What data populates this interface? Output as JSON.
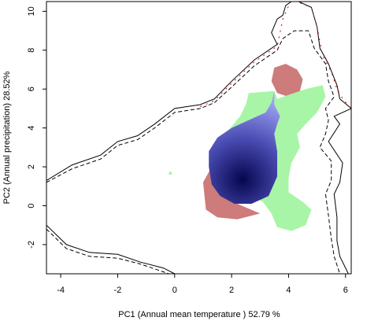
{
  "chart_data": {
    "type": "niche-overlap-density",
    "xlabel": "PC1 (Annual mean temperature ) 52.79 %",
    "ylabel": "PC2 (Annual precipitation) 28.52%",
    "xlim": [
      -4.5,
      6.2
    ],
    "ylim": [
      -3.5,
      10.5
    ],
    "x_ticks": [
      -4,
      -2,
      0,
      2,
      4,
      6
    ],
    "y_ticks": [
      -2,
      0,
      2,
      4,
      6,
      8,
      10
    ],
    "grid": false,
    "legend": "none",
    "colors": {
      "range_a": "#cd7b7b",
      "range_b": "#a8f5a8",
      "overlap_light": "#9ea2f2",
      "overlap_dark": "#06064f",
      "envelope_line": "#000000",
      "envelope_dashed": "#000000",
      "envelope_red": "#cc0000"
    },
    "series": [
      {
        "role": "range_a",
        "regions": [
          [
            [
              3.5,
              7.1
            ],
            [
              3.9,
              7.3
            ],
            [
              4.3,
              7.0
            ],
            [
              4.5,
              6.5
            ],
            [
              4.4,
              5.9
            ],
            [
              4.0,
              5.6
            ],
            [
              3.6,
              5.8
            ],
            [
              3.4,
              6.4
            ]
          ],
          [
            [
              1.6,
              3.5
            ],
            [
              1.3,
              2.0
            ],
            [
              1.0,
              1.2
            ],
            [
              1.1,
              -0.2
            ],
            [
              1.5,
              -0.6
            ],
            [
              2.2,
              -0.7
            ],
            [
              3.0,
              -0.4
            ],
            [
              2.2,
              0.1
            ],
            [
              1.8,
              1.0
            ],
            [
              1.7,
              2.2
            ]
          ]
        ]
      },
      {
        "role": "range_b",
        "regions": [
          [
            [
              2.6,
              5.8
            ],
            [
              3.5,
              5.9
            ],
            [
              3.6,
              5.5
            ],
            [
              4.6,
              6.0
            ],
            [
              5.2,
              6.2
            ],
            [
              5.3,
              5.6
            ],
            [
              5.0,
              4.8
            ],
            [
              4.6,
              4.2
            ],
            [
              4.3,
              3.7
            ],
            [
              4.4,
              3.0
            ],
            [
              4.1,
              2.2
            ],
            [
              4.0,
              1.4
            ],
            [
              4.0,
              0.7
            ],
            [
              4.5,
              0.2
            ],
            [
              4.8,
              -0.2
            ],
            [
              4.6,
              -1.0
            ],
            [
              4.1,
              -1.3
            ],
            [
              3.6,
              -1.1
            ],
            [
              3.4,
              -0.4
            ],
            [
              3.1,
              0.2
            ],
            [
              2.5,
              0.6
            ],
            [
              2.0,
              1.0
            ],
            [
              1.8,
              2.2
            ],
            [
              1.7,
              3.2
            ],
            [
              1.9,
              3.9
            ],
            [
              2.3,
              4.6
            ],
            [
              2.5,
              5.2
            ]
          ],
          [
            [
              -0.2,
              1.75
            ],
            [
              -0.1,
              1.75
            ],
            [
              -0.1,
              1.6
            ],
            [
              -0.2,
              1.6
            ]
          ]
        ]
      },
      {
        "role": "overlap",
        "center": [
          2.35,
          1.35
        ],
        "regions": [
          [
            [
              3.5,
              5.9
            ],
            [
              3.5,
              5.2
            ],
            [
              3.7,
              4.6
            ],
            [
              3.6,
              4.2
            ],
            [
              3.5,
              3.7
            ],
            [
              3.6,
              2.8
            ],
            [
              3.6,
              1.5
            ],
            [
              3.3,
              0.5
            ],
            [
              2.7,
              0.1
            ],
            [
              2.1,
              0.1
            ],
            [
              1.6,
              0.5
            ],
            [
              1.3,
              1.1
            ],
            [
              1.2,
              2.0
            ],
            [
              1.2,
              2.8
            ],
            [
              1.5,
              3.5
            ],
            [
              2.0,
              4.0
            ],
            [
              2.6,
              4.4
            ],
            [
              3.2,
              4.8
            ],
            [
              3.4,
              5.3
            ]
          ]
        ]
      },
      {
        "role": "envelope_solid",
        "points": [
          [
            -4.5,
            1.3
          ],
          [
            -3.6,
            2.1
          ],
          [
            -2.6,
            2.6
          ],
          [
            -2.0,
            3.3
          ],
          [
            -1.3,
            3.6
          ],
          [
            -0.7,
            4.2
          ],
          [
            0.0,
            5.0
          ],
          [
            0.9,
            5.2
          ],
          [
            1.4,
            5.5
          ],
          [
            2.0,
            6.4
          ],
          [
            2.8,
            7.5
          ],
          [
            3.6,
            8.3
          ],
          [
            3.4,
            8.9
          ],
          [
            3.6,
            9.6
          ],
          [
            3.8,
            9.8
          ],
          [
            3.9,
            10.3
          ],
          [
            4.2,
            10.6
          ],
          [
            4.8,
            10.2
          ],
          [
            5.0,
            9.2
          ],
          [
            5.1,
            8.1
          ],
          [
            5.4,
            7.3
          ],
          [
            5.7,
            6.2
          ],
          [
            5.8,
            5.5
          ],
          [
            6.2,
            5.0
          ],
          [
            5.6,
            4.6
          ],
          [
            5.8,
            4.2
          ],
          [
            5.4,
            3.3
          ],
          [
            5.9,
            2.2
          ],
          [
            5.8,
            1.2
          ],
          [
            5.6,
            0.6
          ],
          [
            5.7,
            -0.6
          ],
          [
            5.7,
            -1.8
          ],
          [
            5.8,
            -2.6
          ],
          [
            6.1,
            -3.5
          ]
        ]
      },
      {
        "role": "envelope_solid",
        "points": [
          [
            -4.5,
            -1.0
          ],
          [
            -3.8,
            -2.0
          ],
          [
            -3.0,
            -2.4
          ],
          [
            -2.0,
            -2.5
          ],
          [
            -1.2,
            -2.9
          ],
          [
            -0.4,
            -3.2
          ],
          [
            0.0,
            -3.5
          ]
        ]
      },
      {
        "role": "envelope_dashed",
        "points": [
          [
            -4.5,
            1.2
          ],
          [
            -3.6,
            1.9
          ],
          [
            -2.6,
            2.4
          ],
          [
            -2.0,
            3.1
          ],
          [
            -1.3,
            3.4
          ],
          [
            -0.7,
            4.0
          ],
          [
            0.0,
            4.8
          ],
          [
            0.9,
            5.0
          ],
          [
            1.4,
            5.3
          ],
          [
            2.0,
            6.1
          ],
          [
            2.8,
            7.2
          ],
          [
            3.6,
            8.0
          ],
          [
            3.8,
            8.6
          ],
          [
            4.2,
            9.0
          ],
          [
            4.7,
            9.0
          ],
          [
            4.9,
            8.1
          ],
          [
            5.3,
            7.3
          ],
          [
            5.4,
            6.4
          ],
          [
            5.6,
            5.6
          ],
          [
            5.3,
            5.0
          ],
          [
            5.4,
            4.4
          ],
          [
            5.3,
            3.7
          ],
          [
            5.1,
            3.0
          ],
          [
            5.5,
            2.3
          ],
          [
            5.5,
            1.3
          ],
          [
            5.3,
            0.6
          ],
          [
            5.4,
            -0.5
          ],
          [
            5.5,
            -1.7
          ],
          [
            5.6,
            -2.6
          ],
          [
            5.8,
            -3.5
          ]
        ]
      },
      {
        "role": "envelope_dashed",
        "points": [
          [
            -4.5,
            -1.2
          ],
          [
            -3.8,
            -2.2
          ],
          [
            -3.0,
            -2.6
          ],
          [
            -2.0,
            -2.7
          ],
          [
            -1.2,
            -3.0
          ],
          [
            -0.4,
            -3.4
          ],
          [
            -0.2,
            -3.5
          ]
        ]
      },
      {
        "role": "envelope_red",
        "points": [
          [
            0.9,
            5.1
          ],
          [
            1.4,
            5.4
          ],
          [
            2.0,
            6.3
          ],
          [
            2.8,
            7.4
          ],
          [
            3.6,
            8.2
          ],
          [
            3.8,
            9.6
          ],
          [
            4.1,
            10.6
          ],
          [
            4.8,
            10.2
          ],
          [
            5.0,
            9.2
          ],
          [
            5.2,
            7.7
          ],
          [
            5.5,
            6.9
          ],
          [
            5.7,
            6.0
          ],
          [
            5.9,
            5.5
          ],
          [
            6.2,
            5.0
          ]
        ]
      }
    ]
  }
}
